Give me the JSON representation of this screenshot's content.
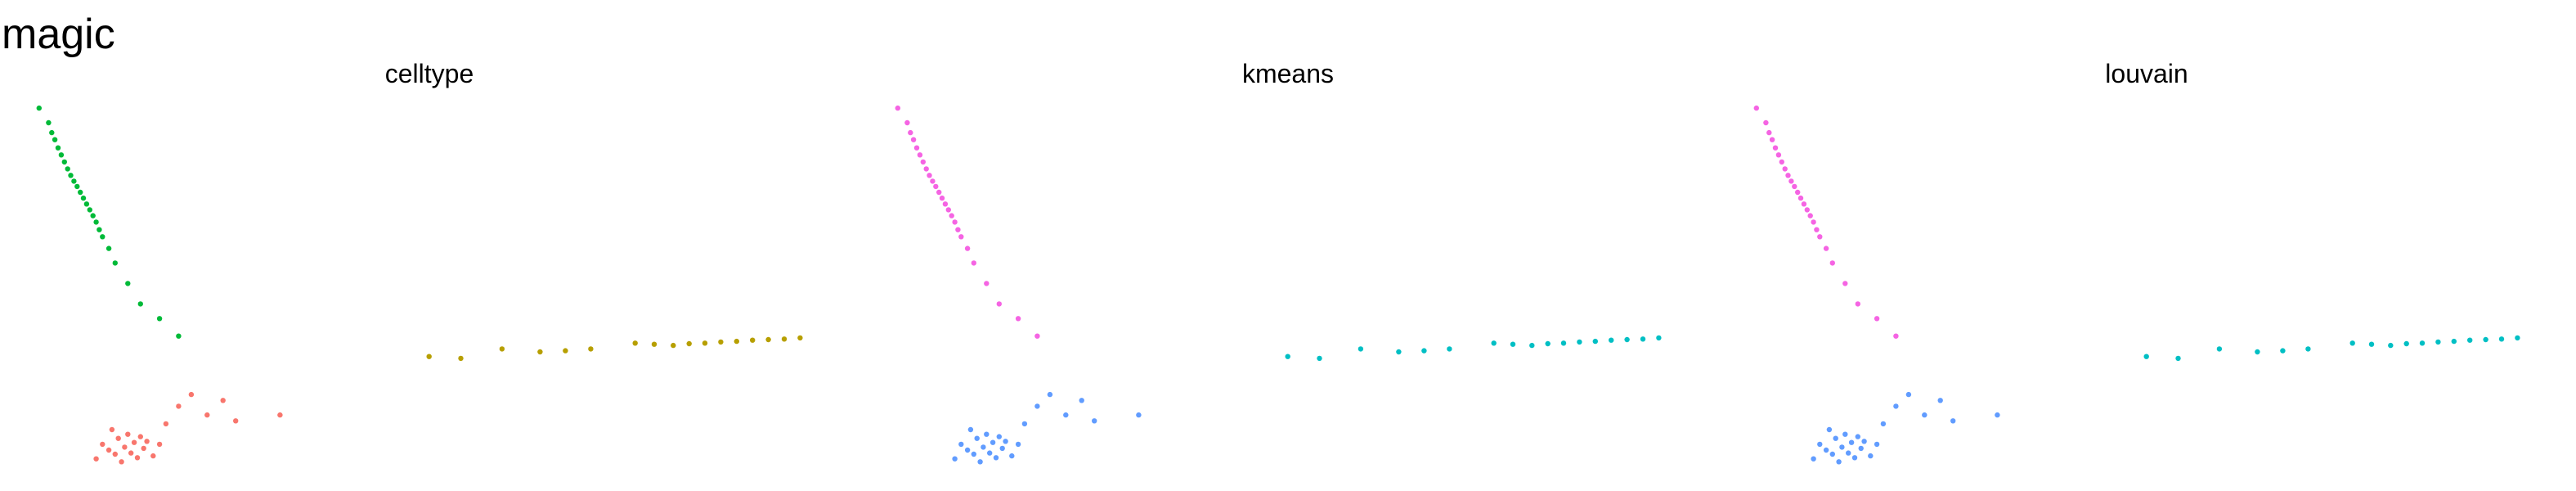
{
  "title": "magic",
  "colors": {
    "red": "#F8766D",
    "green": "#00BA38",
    "olive": "#B79F00",
    "magenta": "#F564E3",
    "blue": "#619CFF",
    "cyan": "#00BFC4"
  },
  "chart_data": [
    {
      "type": "scatter",
      "title": "celltype",
      "grid": false,
      "axes": false,
      "groups": [
        {
          "color": "#00BA38",
          "x": [
            0.02,
            0.05,
            0.06,
            0.07,
            0.08,
            0.09,
            0.1,
            0.11,
            0.12,
            0.13,
            0.14,
            0.15,
            0.16,
            0.17,
            0.18,
            0.19,
            0.2,
            0.21,
            0.22,
            0.24,
            0.26,
            0.3,
            0.34,
            0.4,
            0.46
          ],
          "y": [
            6.2,
            5.95,
            5.78,
            5.66,
            5.52,
            5.4,
            5.28,
            5.16,
            5.05,
            4.95,
            4.86,
            4.76,
            4.66,
            4.56,
            4.46,
            4.36,
            4.25,
            4.12,
            4.0,
            3.8,
            3.55,
            3.2,
            2.85,
            2.6,
            2.3
          ]
        },
        {
          "color": "#B79F00",
          "x": [
            1.25,
            1.35,
            1.48,
            1.6,
            1.68,
            1.76,
            1.9,
            1.96,
            2.02,
            2.07,
            2.12,
            2.17,
            2.22,
            2.27,
            2.32,
            2.37,
            2.42
          ],
          "y": [
            1.95,
            1.92,
            2.08,
            2.03,
            2.05,
            2.08,
            2.18,
            2.16,
            2.14,
            2.17,
            2.18,
            2.2,
            2.21,
            2.23,
            2.24,
            2.25,
            2.27
          ]
        },
        {
          "color": "#F8766D",
          "x": [
            0.2,
            0.22,
            0.24,
            0.25,
            0.26,
            0.27,
            0.28,
            0.29,
            0.3,
            0.31,
            0.32,
            0.33,
            0.34,
            0.35,
            0.36,
            0.38,
            0.4,
            0.42,
            0.46,
            0.5,
            0.55,
            0.6,
            0.64,
            0.78
          ],
          "y": [
            0.2,
            0.45,
            0.35,
            0.7,
            0.28,
            0.55,
            0.15,
            0.4,
            0.62,
            0.3,
            0.48,
            0.22,
            0.58,
            0.38,
            0.5,
            0.25,
            0.45,
            0.8,
            1.1,
            1.3,
            0.95,
            1.2,
            0.85,
            0.95
          ]
        }
      ],
      "xlim": [
        0,
        2.45
      ],
      "ylim": [
        0,
        6.3
      ]
    },
    {
      "type": "scatter",
      "title": "kmeans",
      "grid": false,
      "axes": false,
      "groups": [
        {
          "color": "#F564E3",
          "x": [
            0.02,
            0.05,
            0.06,
            0.07,
            0.08,
            0.09,
            0.1,
            0.11,
            0.12,
            0.13,
            0.14,
            0.15,
            0.16,
            0.17,
            0.18,
            0.19,
            0.2,
            0.21,
            0.22,
            0.24,
            0.26,
            0.3,
            0.34,
            0.4,
            0.46
          ],
          "y": [
            6.2,
            5.95,
            5.78,
            5.66,
            5.52,
            5.4,
            5.28,
            5.16,
            5.05,
            4.95,
            4.86,
            4.76,
            4.66,
            4.56,
            4.46,
            4.36,
            4.25,
            4.12,
            4.0,
            3.8,
            3.55,
            3.2,
            2.85,
            2.6,
            2.3
          ]
        },
        {
          "color": "#00BFC4",
          "x": [
            1.25,
            1.35,
            1.48,
            1.6,
            1.68,
            1.76,
            1.9,
            1.96,
            2.02,
            2.07,
            2.12,
            2.17,
            2.22,
            2.27,
            2.32,
            2.37,
            2.42
          ],
          "y": [
            1.95,
            1.92,
            2.08,
            2.03,
            2.05,
            2.08,
            2.18,
            2.16,
            2.14,
            2.17,
            2.18,
            2.2,
            2.21,
            2.23,
            2.24,
            2.25,
            2.27
          ]
        },
        {
          "color": "#619CFF",
          "x": [
            0.2,
            0.22,
            0.24,
            0.25,
            0.26,
            0.27,
            0.28,
            0.29,
            0.3,
            0.31,
            0.32,
            0.33,
            0.34,
            0.35,
            0.36,
            0.38,
            0.4,
            0.42,
            0.46,
            0.5,
            0.55,
            0.6,
            0.64,
            0.78
          ],
          "y": [
            0.2,
            0.45,
            0.35,
            0.7,
            0.28,
            0.55,
            0.15,
            0.4,
            0.62,
            0.3,
            0.48,
            0.22,
            0.58,
            0.38,
            0.5,
            0.25,
            0.45,
            0.8,
            1.1,
            1.3,
            0.95,
            1.2,
            0.85,
            0.95
          ]
        }
      ],
      "xlim": [
        0,
        2.45
      ],
      "ylim": [
        0,
        6.3
      ]
    },
    {
      "type": "scatter",
      "title": "louvain",
      "grid": false,
      "axes": false,
      "groups": [
        {
          "color": "#F564E3",
          "x": [
            0.02,
            0.05,
            0.06,
            0.07,
            0.08,
            0.09,
            0.1,
            0.11,
            0.12,
            0.13,
            0.14,
            0.15,
            0.16,
            0.17,
            0.18,
            0.19,
            0.2,
            0.21,
            0.22,
            0.24,
            0.26,
            0.3,
            0.34,
            0.4,
            0.46
          ],
          "y": [
            6.2,
            5.95,
            5.78,
            5.66,
            5.52,
            5.4,
            5.28,
            5.16,
            5.05,
            4.95,
            4.86,
            4.76,
            4.66,
            4.56,
            4.46,
            4.36,
            4.25,
            4.12,
            4.0,
            3.8,
            3.55,
            3.2,
            2.85,
            2.6,
            2.3
          ]
        },
        {
          "color": "#00BFC4",
          "x": [
            1.25,
            1.35,
            1.48,
            1.6,
            1.68,
            1.76,
            1.9,
            1.96,
            2.02,
            2.07,
            2.12,
            2.17,
            2.22,
            2.27,
            2.32,
            2.37,
            2.42
          ],
          "y": [
            1.95,
            1.92,
            2.08,
            2.03,
            2.05,
            2.08,
            2.18,
            2.16,
            2.14,
            2.17,
            2.18,
            2.2,
            2.21,
            2.23,
            2.24,
            2.25,
            2.27
          ]
        },
        {
          "color": "#619CFF",
          "x": [
            0.2,
            0.22,
            0.24,
            0.25,
            0.26,
            0.27,
            0.28,
            0.29,
            0.3,
            0.31,
            0.32,
            0.33,
            0.34,
            0.35,
            0.36,
            0.38,
            0.4,
            0.42,
            0.46,
            0.5,
            0.55,
            0.6,
            0.64,
            0.78
          ],
          "y": [
            0.2,
            0.45,
            0.35,
            0.7,
            0.28,
            0.55,
            0.15,
            0.4,
            0.62,
            0.3,
            0.48,
            0.22,
            0.58,
            0.38,
            0.5,
            0.25,
            0.45,
            0.8,
            1.1,
            1.3,
            0.95,
            1.2,
            0.85,
            0.95
          ]
        }
      ],
      "xlim": [
        0,
        2.45
      ],
      "ylim": [
        0,
        6.3
      ]
    }
  ]
}
